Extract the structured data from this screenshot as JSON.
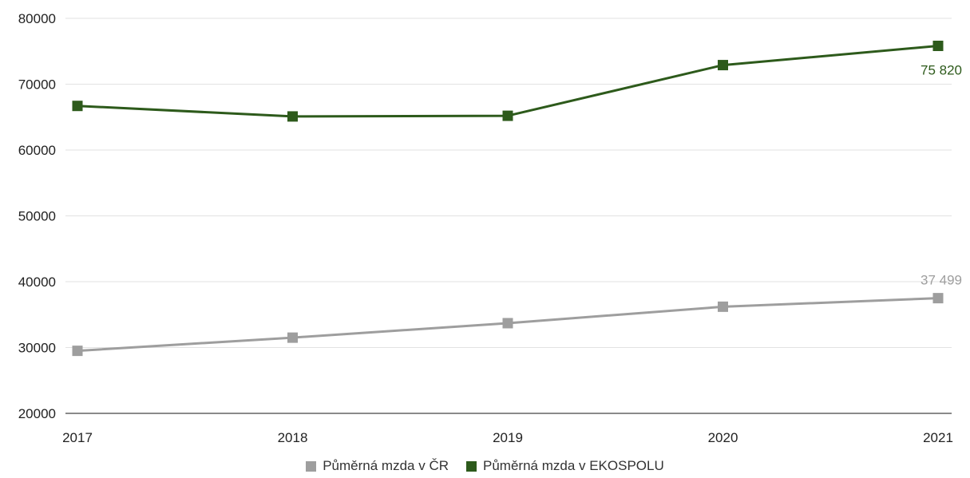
{
  "chart_data": {
    "type": "line",
    "x": [
      "2017",
      "2018",
      "2019",
      "2020",
      "2021"
    ],
    "ylim": [
      20000,
      80000
    ],
    "yticks": [
      "20000",
      "30000",
      "40000",
      "50000",
      "60000",
      "70000",
      "80000"
    ],
    "grid": true,
    "legend_position": "bottom",
    "series": [
      {
        "name": "Půměrná mzda v ČR",
        "values": [
          29500,
          31500,
          33700,
          36200,
          37499
        ],
        "color": "#9e9e9e",
        "last_label": "37 499"
      },
      {
        "name": "Půměrná mzda v EKOSPOLU",
        "values": [
          66700,
          65100,
          65200,
          72900,
          75820
        ],
        "color": "#2d5a1b",
        "last_label": "75 820"
      }
    ]
  }
}
